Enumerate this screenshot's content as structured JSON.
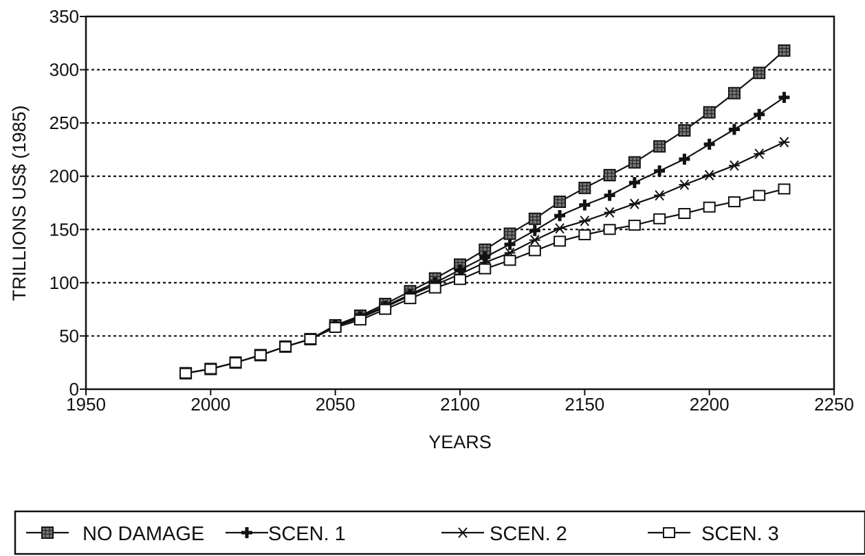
{
  "chart_data": {
    "type": "line",
    "title": "",
    "xlabel": "YEARS",
    "ylabel": "TRILLIONS US$ (1985)",
    "xlim": [
      1950,
      2250
    ],
    "ylim": [
      0,
      350
    ],
    "xticks": [
      "1950",
      "2000",
      "2050",
      "2100",
      "2150",
      "2200",
      "2250"
    ],
    "yticks": [
      "0",
      "50",
      "100",
      "150",
      "200",
      "250",
      "300",
      "350"
    ],
    "grid": "horizontal-dotted",
    "legend_position": "bottom",
    "x": [
      1990,
      2000,
      2010,
      2020,
      2030,
      2040,
      2050,
      2060,
      2070,
      2080,
      2090,
      2100,
      2110,
      2120,
      2130,
      2140,
      2150,
      2160,
      2170,
      2180,
      2190,
      2200,
      2210,
      2220,
      2230
    ],
    "series": [
      {
        "name": "NO DAMAGE",
        "marker": "filled-square",
        "values": [
          15,
          19,
          25,
          32,
          40,
          47,
          60,
          69,
          80,
          92,
          104,
          117,
          131,
          146,
          160,
          176,
          189,
          201,
          213,
          228,
          243,
          260,
          278,
          297,
          318
        ]
      },
      {
        "name": "SCEN. 1",
        "marker": "plus",
        "values": [
          15,
          19,
          25,
          32,
          40,
          47,
          60,
          68,
          78,
          89,
          100,
          112,
          124,
          136,
          149,
          163,
          173,
          182,
          194,
          205,
          216,
          230,
          244,
          258,
          274
        ]
      },
      {
        "name": "SCEN. 2",
        "marker": "asterisk",
        "values": [
          15,
          19,
          25,
          32,
          40,
          47,
          59,
          67,
          77,
          88,
          98,
          108,
          119,
          128,
          140,
          151,
          158,
          166,
          174,
          182,
          192,
          201,
          210,
          221,
          232
        ]
      },
      {
        "name": "SCEN. 3",
        "marker": "open-square",
        "values": [
          15,
          19,
          25,
          32,
          40,
          47,
          58,
          65,
          75,
          85,
          95,
          103,
          113,
          121,
          130,
          139,
          145,
          150,
          154,
          160,
          165,
          171,
          176,
          182,
          188
        ]
      }
    ]
  }
}
